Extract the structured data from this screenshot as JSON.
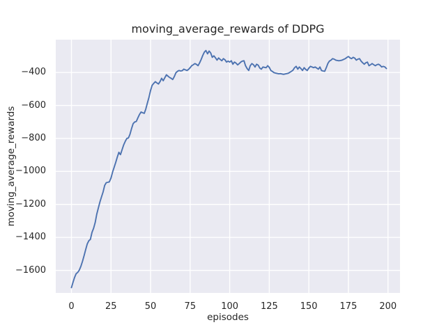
{
  "chart_data": {
    "type": "line",
    "title": "moving_average_rewards of DDPG",
    "xlabel": "episodes",
    "ylabel": "moving_average_rewards",
    "legend": false,
    "grid": true,
    "xlim": [
      -9.9,
      207.6
    ],
    "ylim": [
      -1737,
      -201
    ],
    "xtick_values": [
      0,
      25,
      50,
      75,
      100,
      125,
      150,
      175,
      200
    ],
    "xtick_labels": [
      "0",
      "25",
      "50",
      "75",
      "100",
      "125",
      "150",
      "175",
      "200"
    ],
    "ytick_values": [
      -400,
      -600,
      -800,
      -1000,
      -1200,
      -1400,
      -1600
    ],
    "ytick_labels": [
      "−400",
      "−600",
      "−800",
      "−1000",
      "−1200",
      "−1400",
      "−1600"
    ],
    "style": {
      "line_color": "#4C72B0",
      "axes_background": "#EAEAF2",
      "grid_color": "#FFFFFF",
      "figure_background": "#FFFFFF",
      "text_color": "#262626"
    },
    "series_name": "moving_average_rewards",
    "x_start": 0,
    "x_step": 1,
    "values": [
      -1705,
      -1672,
      -1643,
      -1620,
      -1612,
      -1598,
      -1575,
      -1545,
      -1510,
      -1475,
      -1440,
      -1420,
      -1412,
      -1370,
      -1345,
      -1310,
      -1260,
      -1222,
      -1185,
      -1155,
      -1125,
      -1085,
      -1068,
      -1066,
      -1063,
      -1040,
      -1005,
      -975,
      -945,
      -912,
      -884,
      -898,
      -868,
      -840,
      -818,
      -800,
      -797,
      -775,
      -740,
      -710,
      -700,
      -697,
      -675,
      -655,
      -640,
      -644,
      -648,
      -622,
      -585,
      -550,
      -510,
      -478,
      -466,
      -456,
      -463,
      -470,
      -455,
      -435,
      -450,
      -432,
      -414,
      -422,
      -430,
      -435,
      -443,
      -425,
      -402,
      -393,
      -388,
      -391,
      -389,
      -380,
      -384,
      -388,
      -381,
      -371,
      -359,
      -353,
      -346,
      -351,
      -359,
      -341,
      -321,
      -296,
      -276,
      -267,
      -287,
      -270,
      -282,
      -308,
      -299,
      -311,
      -325,
      -312,
      -321,
      -329,
      -316,
      -323,
      -337,
      -331,
      -337,
      -329,
      -350,
      -337,
      -343,
      -354,
      -346,
      -337,
      -331,
      -329,
      -359,
      -376,
      -388,
      -359,
      -346,
      -353,
      -367,
      -350,
      -356,
      -373,
      -380,
      -367,
      -369,
      -371,
      -359,
      -369,
      -388,
      -394,
      -401,
      -404,
      -406,
      -408,
      -407,
      -409,
      -411,
      -409,
      -407,
      -405,
      -399,
      -393,
      -386,
      -371,
      -363,
      -380,
      -367,
      -376,
      -388,
      -371,
      -381,
      -388,
      -373,
      -363,
      -367,
      -371,
      -367,
      -373,
      -380,
      -367,
      -388,
      -391,
      -393,
      -371,
      -346,
      -331,
      -325,
      -316,
      -319,
      -325,
      -327,
      -329,
      -327,
      -325,
      -321,
      -316,
      -309,
      -303,
      -311,
      -316,
      -308,
      -313,
      -325,
      -319,
      -316,
      -331,
      -341,
      -350,
      -341,
      -337,
      -359,
      -353,
      -346,
      -353,
      -359,
      -353,
      -350,
      -356,
      -367,
      -363,
      -366,
      -376
    ]
  }
}
